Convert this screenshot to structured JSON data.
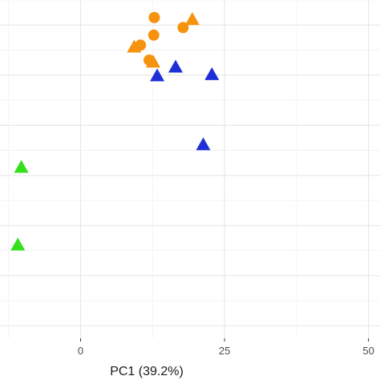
{
  "chart_data": {
    "type": "scatter",
    "xlabel": "PC1 (39.2%)",
    "ylabel": "",
    "xlim": [
      -14,
      52
    ],
    "ylim": [
      -0.5,
      13
    ],
    "x_ticks": [
      0,
      25,
      50
    ],
    "x_tick_labels": [
      "0",
      "25",
      "50"
    ],
    "grid": true,
    "legend": "none",
    "series": [
      {
        "color": "#f5930f",
        "points": [
          {
            "x": 12.8,
            "y": 12.3,
            "shape": "circle"
          },
          {
            "x": 19.4,
            "y": 12.2,
            "shape": "triangle"
          },
          {
            "x": 17.8,
            "y": 11.9,
            "shape": "circle"
          },
          {
            "x": 12.7,
            "y": 11.6,
            "shape": "circle"
          },
          {
            "x": 10.4,
            "y": 11.2,
            "shape": "circle"
          },
          {
            "x": 9.3,
            "y": 11.1,
            "shape": "triangle"
          },
          {
            "x": 11.9,
            "y": 10.6,
            "shape": "circle"
          },
          {
            "x": 12.6,
            "y": 10.5,
            "shape": "triangle"
          }
        ]
      },
      {
        "color": "#1f2fd6",
        "points": [
          {
            "x": 16.5,
            "y": 10.3,
            "shape": "triangle"
          },
          {
            "x": 13.3,
            "y": 9.95,
            "shape": "triangle"
          },
          {
            "x": 22.8,
            "y": 10.0,
            "shape": "triangle"
          },
          {
            "x": 21.3,
            "y": 7.2,
            "shape": "triangle"
          }
        ]
      },
      {
        "color": "#33e01a",
        "points": [
          {
            "x": -10.3,
            "y": 6.3,
            "shape": "triangle"
          },
          {
            "x": -10.9,
            "y": 3.2,
            "shape": "triangle"
          }
        ]
      }
    ]
  }
}
